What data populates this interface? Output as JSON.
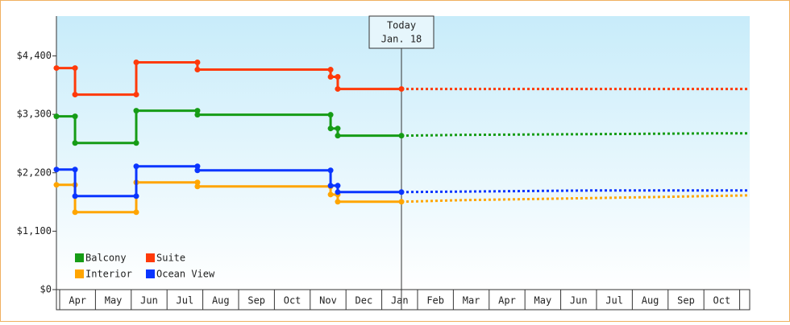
{
  "chart_data": {
    "type": "step",
    "categories": [
      "Apr",
      "May",
      "Jun",
      "Jul",
      "Aug",
      "Sep",
      "Oct",
      "Nov",
      "Dec",
      "Jan",
      "Feb",
      "Mar",
      "Apr",
      "May",
      "Jun",
      "Jul",
      "Aug",
      "Sep",
      "Oct"
    ],
    "xlim": [
      -0.09,
      19.28
    ],
    "ylim": [
      0,
      5150
    ],
    "yticks": [
      {
        "value": 0,
        "label": "$0"
      },
      {
        "value": 1100,
        "label": "$1,100"
      },
      {
        "value": 2200,
        "label": "$2,200"
      },
      {
        "value": 3300,
        "label": "$3,300"
      },
      {
        "value": 4400,
        "label": "$4,400"
      }
    ],
    "annotation": {
      "x": 9.55,
      "lines": [
        "Today",
        "Jan. 18"
      ]
    },
    "series": [
      {
        "name": "Balcony",
        "color": "#169c16",
        "x": [
          -0.09,
          0.43,
          2.14,
          3.85,
          7.57,
          7.77,
          9.55
        ],
        "values": [
          3262,
          2761,
          3368,
          3292,
          3034,
          2898,
          2898
        ],
        "forecast_x": [
          9.55,
          11.2,
          15,
          18.5,
          19.28
        ],
        "forecast_values": [
          2898,
          2913,
          2928,
          2943,
          2943
        ]
      },
      {
        "name": "Suite",
        "color": "#ff3a0a",
        "x": [
          -0.09,
          0.43,
          2.14,
          3.85,
          7.57,
          7.77,
          9.55
        ],
        "values": [
          4172,
          3672,
          4279,
          4142,
          4006,
          3778,
          3778
        ],
        "forecast_x": [
          9.55,
          19.28
        ],
        "forecast_values": [
          3778,
          3778
        ]
      },
      {
        "name": "Interior",
        "color": "#ffa500",
        "x": [
          -0.09,
          0.43,
          2.14,
          3.85,
          7.57,
          7.77,
          9.55
        ],
        "values": [
          1972,
          1457,
          2018,
          1942,
          1790,
          1654,
          1654
        ],
        "forecast_x": [
          9.55,
          11.2,
          15.5,
          19.28
        ],
        "forecast_values": [
          1654,
          1684,
          1730,
          1775
        ]
      },
      {
        "name": "Ocean View",
        "color": "#0a35ff",
        "x": [
          -0.09,
          0.43,
          2.14,
          3.85,
          7.57,
          7.77,
          9.55
        ],
        "values": [
          2261,
          1760,
          2321,
          2245,
          1957,
          1836,
          1836
        ],
        "forecast_x": [
          9.55,
          14.8,
          19.28
        ],
        "forecast_values": [
          1836,
          1866,
          1866
        ]
      }
    ]
  }
}
